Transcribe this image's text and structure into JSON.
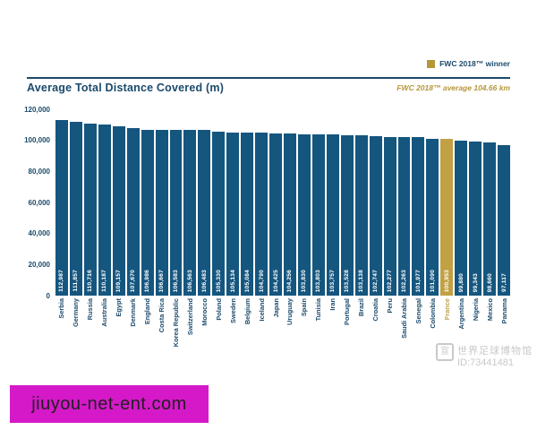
{
  "header": {
    "title": "Average Total Distance Covered (m)",
    "legend_label": "FWC 2018™ winner",
    "average_note": "FWC 2018™ average 104.66 km"
  },
  "chart_data": {
    "type": "bar",
    "title": "Average Total Distance Covered (m)",
    "xlabel": "",
    "ylabel": "",
    "ylim": [
      0,
      120000
    ],
    "yticks": [
      "0",
      "20,000",
      "40,000",
      "60,000",
      "80,000",
      "100,000",
      "120,000"
    ],
    "grid": false,
    "legend_position": "top-right",
    "legend": [
      {
        "label": "FWC 2018™ winner",
        "color": "#b5973a"
      }
    ],
    "annotation": "FWC 2018™ average 104.66 km",
    "bar_color": "#15567f",
    "highlight": {
      "category": "France",
      "color": "#c2a144",
      "label_color": "#c2a144"
    },
    "categories": [
      "Serbia",
      "Germany",
      "Russia",
      "Australia",
      "Egypt",
      "Denmark",
      "England",
      "Costa Rica",
      "Korea Republic",
      "Switzerland",
      "Morocco",
      "Poland",
      "Sweden",
      "Belgium",
      "Iceland",
      "Japan",
      "Uruguay",
      "Spain",
      "Tunisia",
      "Iran",
      "Portugal",
      "Brazil",
      "Croatia",
      "Peru",
      "Saudi Arabia",
      "Senegal",
      "Colombia",
      "France",
      "Argentina",
      "Nigeria",
      "Mexico",
      "Panama"
    ],
    "values": [
      112987,
      111857,
      110716,
      110187,
      109157,
      107670,
      106986,
      106667,
      106583,
      106563,
      106483,
      105330,
      105134,
      105084,
      104790,
      104425,
      104256,
      103830,
      103803,
      103757,
      103528,
      103138,
      102747,
      102277,
      102263,
      101977,
      101090,
      100953,
      99880,
      99343,
      98660,
      97117
    ]
  },
  "watermarks": {
    "photo_credit_cn": "世界足球博物馆",
    "photo_credit_id": "ID:73441481",
    "site": "jiuyou-net-ent.com"
  },
  "colors": {
    "navy_text": "#1b4a6b",
    "bar_blue": "#15567f",
    "gold": "#b5973a",
    "winner_gold": "#c2a144",
    "banner_magenta": "#d519c9",
    "watermark_gray": "#c9c9c9"
  }
}
